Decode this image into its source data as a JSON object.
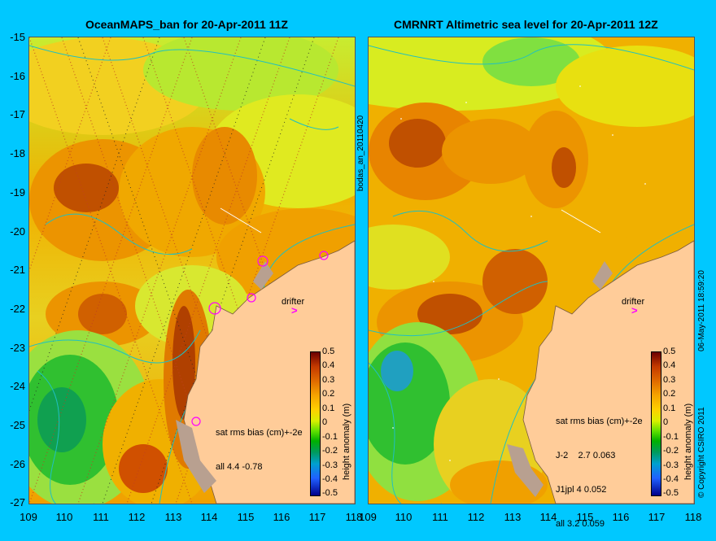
{
  "left_panel": {
    "title": "OceanMAPS_ban for 20-Apr-2011 11Z",
    "drifter_label": "drifter",
    "stats_header": "sat rms bias (cm)+-2e",
    "stats_lines": [
      "all 4.4 -0.78"
    ],
    "colorbar_label": "height anomaly (m)"
  },
  "right_panel": {
    "title": "CMRNRT Altimetric sea level  for 20-Apr-2011 12Z",
    "drifter_label": "drifter",
    "stats_header": "sat rms bias (cm)+-2e",
    "stats_lines": [
      "J-2    2.7 0.063",
      "J1jpl 4 0.052",
      "all 3.2 0.059"
    ],
    "colorbar_label": "height anomaly (m)"
  },
  "mid_label": "bodas_an_20110420",
  "right_edge_label": "06-May-2011 18:59:20",
  "copyright": "© Copyright CSIRO 2011",
  "y_ticks": [
    "-15",
    "-16",
    "-17",
    "-18",
    "-19",
    "-20",
    "-21",
    "-22",
    "-23",
    "-24",
    "-25",
    "-26",
    "-27"
  ],
  "x_ticks_left": [
    "109",
    "110",
    "111",
    "112",
    "113",
    "114",
    "115",
    "116",
    "117",
    "118"
  ],
  "x_ticks_right": [
    "109",
    "110",
    "111",
    "112",
    "113",
    "114",
    "115",
    "116",
    "117",
    "118"
  ],
  "colorbar_ticks": [
    "0.5",
    "0.4",
    "0.3",
    "0.2",
    "0.1",
    "0",
    "-0.1",
    "-0.2",
    "-0.3",
    "-0.4",
    "-0.5"
  ],
  "colors": {
    "background": "#00c8ff",
    "land": "#ffcc99",
    "drifter": "#ff00ff"
  }
}
